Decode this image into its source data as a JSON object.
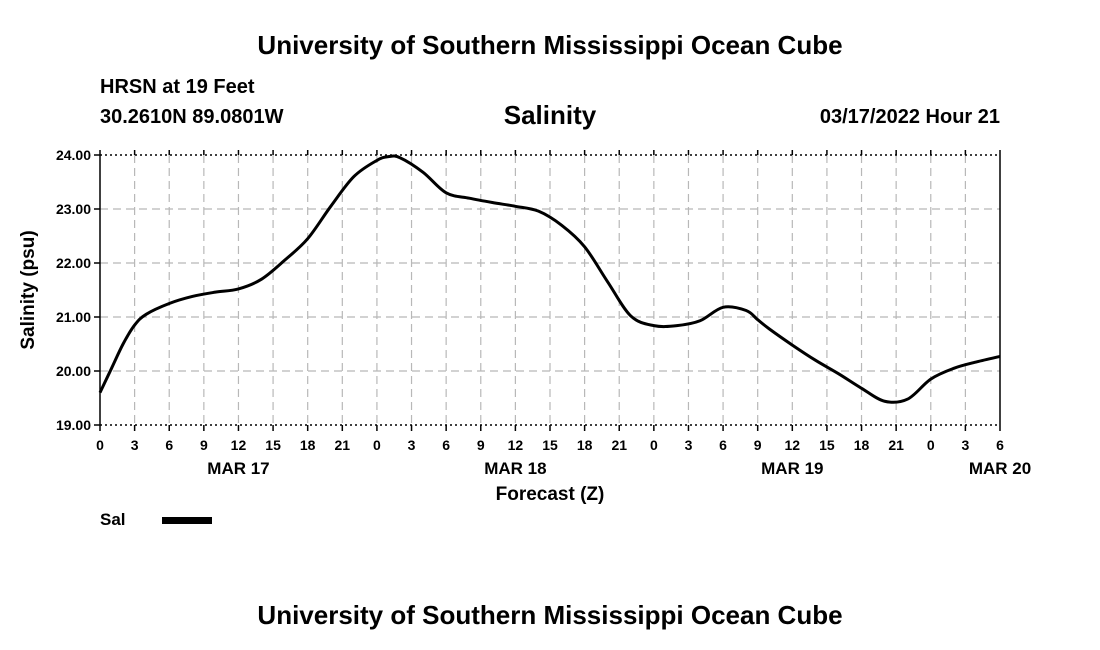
{
  "header": {
    "title": "University of Southern Mississippi Ocean Cube",
    "station": "HRSN at 19 Feet",
    "coords": "30.2610N  89.0801W",
    "date": "03/17/2022 Hour 21"
  },
  "footer": {
    "title": "University of Southern Mississippi Ocean Cube"
  },
  "legend": {
    "label": "Sal"
  },
  "chart_data": {
    "type": "line",
    "title": "Salinity",
    "xlabel": "Forecast (Z)",
    "ylabel": "Salinity (psu)",
    "ylim": [
      19.0,
      24.0
    ],
    "y_ticks": [
      "19.00",
      "20.00",
      "21.00",
      "22.00",
      "23.00",
      "24.00"
    ],
    "x_hour_ticks": [
      "0",
      "3",
      "6",
      "9",
      "12",
      "15",
      "18",
      "21",
      "0",
      "3",
      "6",
      "9",
      "12",
      "15",
      "18",
      "21",
      "0",
      "3",
      "6",
      "9",
      "12",
      "15",
      "18",
      "21",
      "0",
      "3",
      "6"
    ],
    "x_day_labels": [
      {
        "label": "MAR 17",
        "hour": 12
      },
      {
        "label": "MAR 18",
        "hour": 36
      },
      {
        "label": "MAR 19",
        "hour": 60
      },
      {
        "label": "MAR 20",
        "hour": 78
      }
    ],
    "xlim": [
      0,
      78
    ],
    "grid": true,
    "line_color": "#000000",
    "series": [
      {
        "name": "Sal",
        "x": [
          0,
          1,
          2,
          3,
          4,
          6,
          8,
          10,
          12,
          14,
          16,
          18,
          20,
          22,
          24,
          25,
          26,
          28,
          30,
          32,
          34,
          36,
          38,
          40,
          42,
          44,
          46,
          48,
          50,
          52,
          54,
          56,
          57,
          58,
          60,
          62,
          64,
          66,
          68,
          70,
          72,
          74,
          76,
          78
        ],
        "y": [
          19.6,
          20.05,
          20.5,
          20.85,
          21.05,
          21.25,
          21.38,
          21.46,
          21.52,
          21.7,
          22.05,
          22.45,
          23.05,
          23.6,
          23.9,
          23.97,
          23.95,
          23.68,
          23.3,
          23.2,
          23.12,
          23.05,
          22.96,
          22.7,
          22.3,
          21.65,
          21.02,
          20.84,
          20.84,
          20.93,
          21.18,
          21.12,
          20.95,
          20.78,
          20.48,
          20.2,
          19.95,
          19.68,
          19.44,
          19.48,
          19.85,
          20.05,
          20.17,
          20.27
        ]
      }
    ]
  }
}
